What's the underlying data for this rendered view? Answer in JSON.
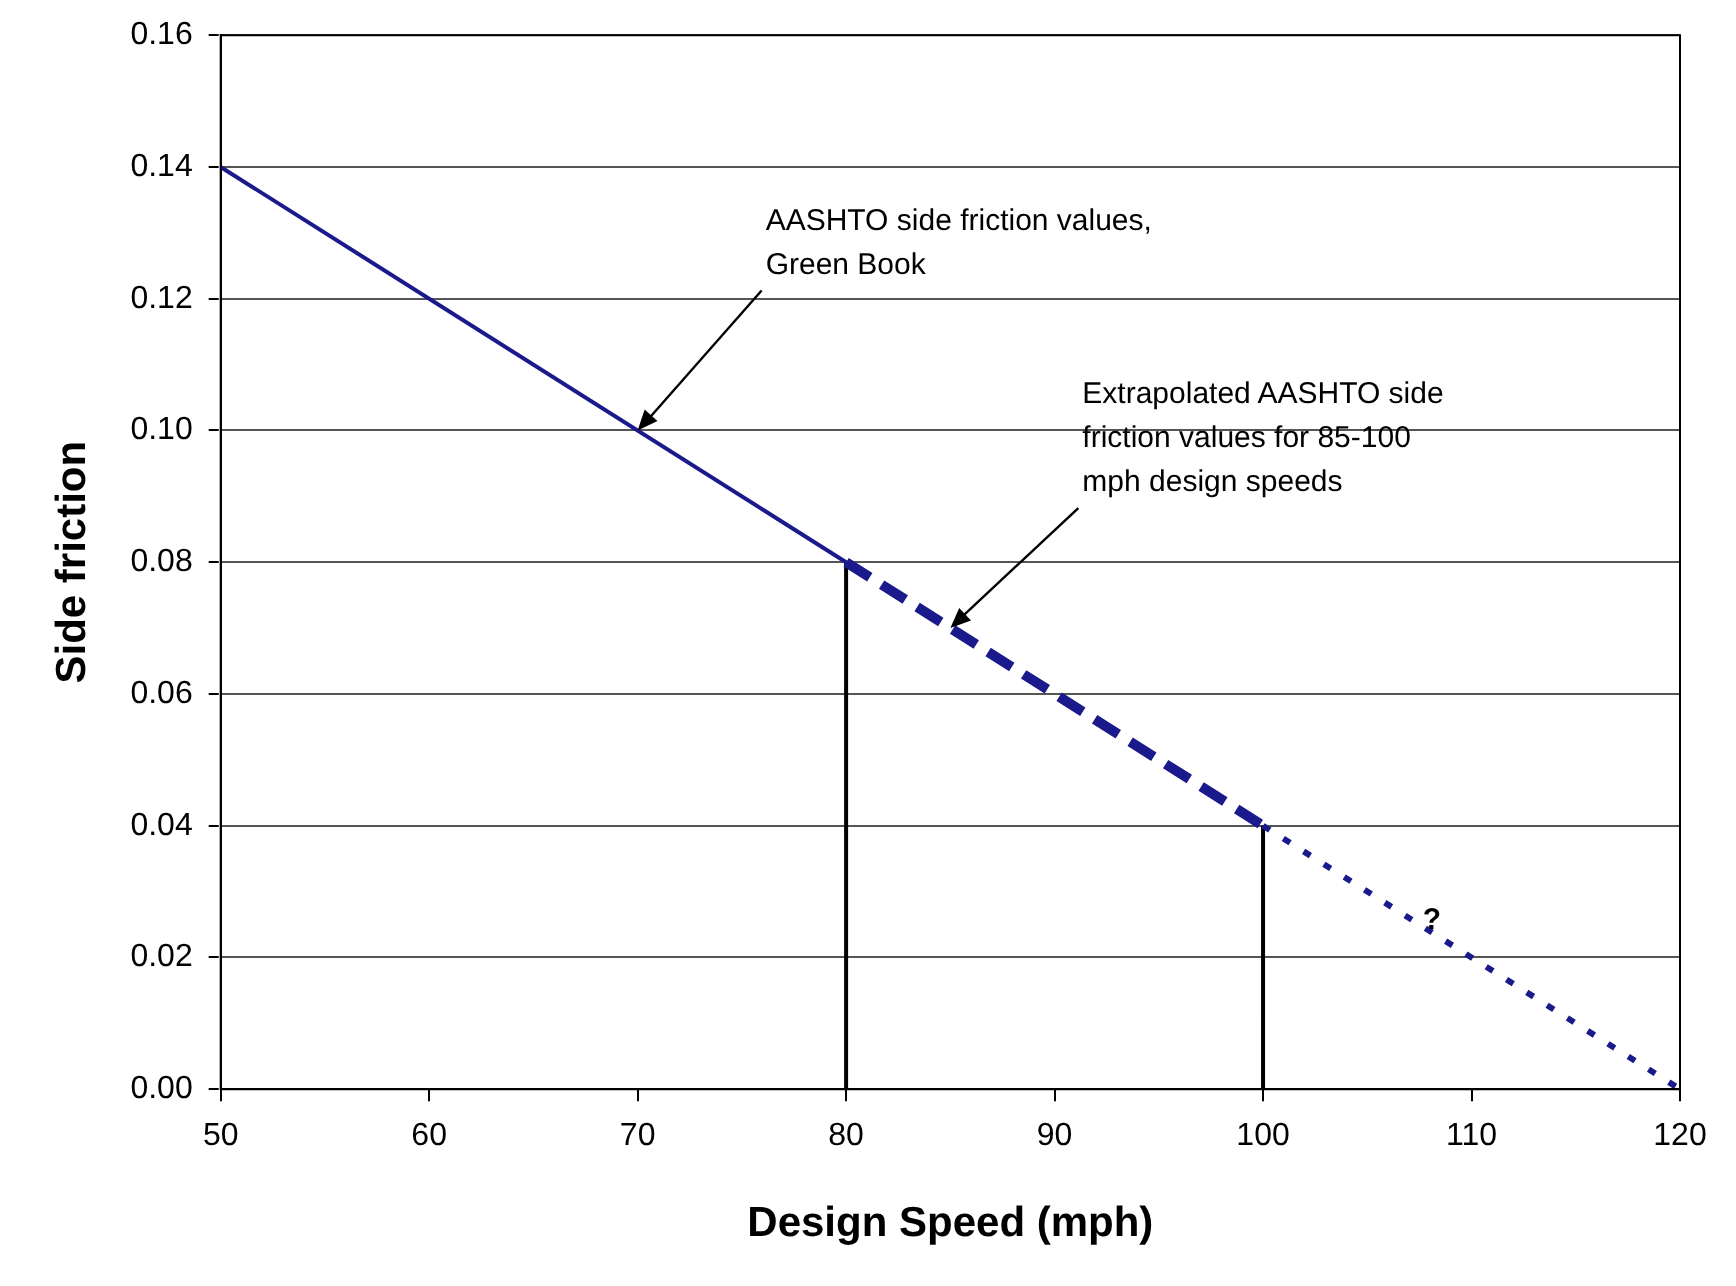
{
  "chart_data": {
    "type": "line",
    "xlabel": "Design Speed (mph)",
    "ylabel": "Side friction",
    "xlim": [
      50,
      120
    ],
    "xticks": [
      50,
      60,
      70,
      80,
      90,
      100,
      110,
      120
    ],
    "ylim": [
      0,
      0.16
    ],
    "yticks": [
      {
        "value": 0,
        "label": "0.00"
      },
      {
        "value": 0.02,
        "label": "0.02"
      },
      {
        "value": 0.04,
        "label": "0.04"
      },
      {
        "value": 0.06,
        "label": "0.06"
      },
      {
        "value": 0.08,
        "label": "0.08"
      },
      {
        "value": 0.1,
        "label": "0.10"
      },
      {
        "value": 0.12,
        "label": "0.12"
      },
      {
        "value": 0.14,
        "label": "0.14"
      },
      {
        "value": 0.16,
        "label": "0.16"
      }
    ],
    "grid": "y",
    "marker": "none",
    "series": [
      {
        "color": "#1a1a8c",
        "line_style": "solid",
        "x": [
          50,
          80
        ],
        "values": [
          0.14,
          0.08
        ]
      },
      {
        "color": "#1a1a8c",
        "line_style": "dashed",
        "x": [
          80,
          100
        ],
        "values": [
          0.08,
          0.04
        ]
      },
      {
        "color": "#1a1a8c",
        "line_style": "dotted",
        "x": [
          100,
          120
        ],
        "values": [
          0.04,
          0
        ]
      },
      {
        "color": "#000000",
        "line_style": "solid",
        "x": [
          80,
          80,
          90,
          100,
          100
        ],
        "values": [
          0,
          0.08,
          null,
          0,
          0.04
        ]
      }
    ],
    "annotations": [
      {
        "text": "AASHTO side friction values, Green Book",
        "x": 70,
        "y": 0.1
      },
      {
        "text": "Extrapolated AASHTO side friction values for 85-100 mph design speeds",
        "x": 85,
        "y": 0.07
      },
      "?"
    ]
  }
}
